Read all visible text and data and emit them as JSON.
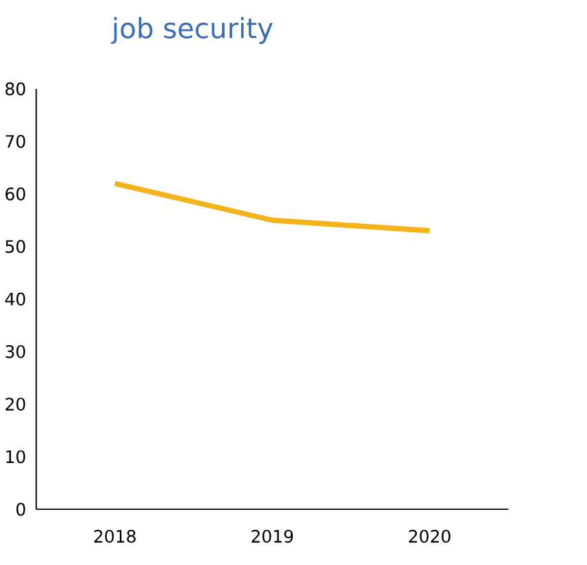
{
  "chart_data": {
    "type": "line",
    "title": "job security",
    "categories": [
      "2018",
      "2019",
      "2020"
    ],
    "series": [
      {
        "color": "#f4b31a",
        "values": [
          62,
          55,
          53
        ]
      }
    ],
    "ylim": [
      0,
      80
    ],
    "yticks": [
      0,
      10,
      20,
      30,
      40,
      50,
      60,
      70,
      80
    ],
    "marker": "none"
  }
}
